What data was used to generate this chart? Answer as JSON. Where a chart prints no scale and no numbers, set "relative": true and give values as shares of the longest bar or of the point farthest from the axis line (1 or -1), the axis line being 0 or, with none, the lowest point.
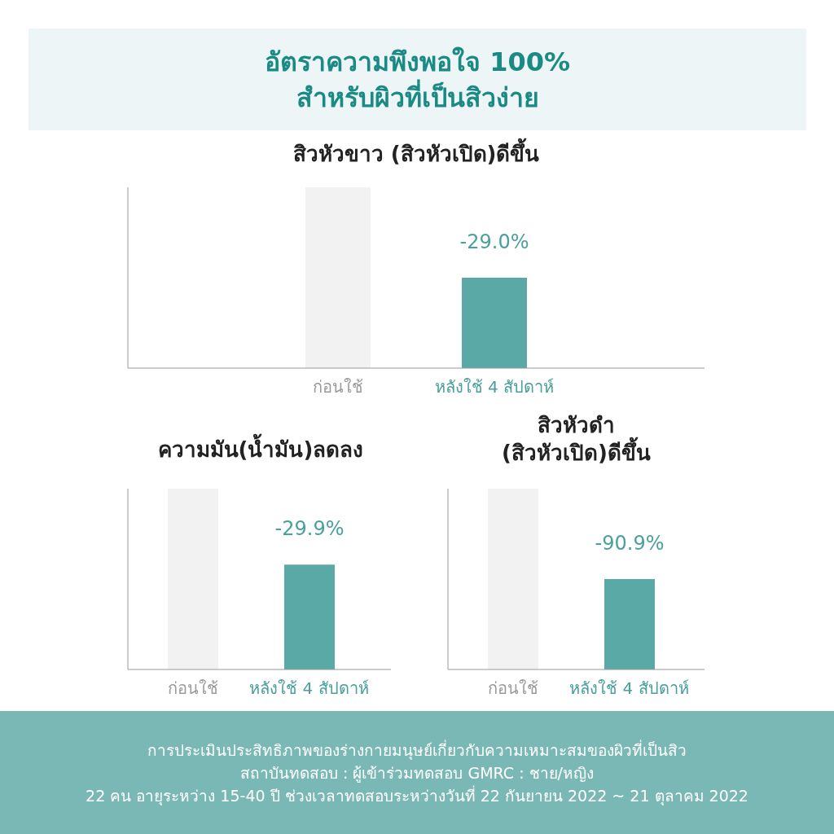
{
  "chart_data": [
    {
      "type": "other",
      "title": "อัตราความพึงพอใจ 100%\nสำหรับผิวที่เป็นสิวง่าย"
    },
    {
      "type": "bar",
      "title": "สิวหัวขาว (สิวหัวเปิด)ดีขึ้น",
      "categories": [
        "ก่อนใช้",
        "หลังใช้ 4 สัปดาห์"
      ],
      "values": [
        1,
        0.5
      ],
      "colors": [
        "#f2f2f2",
        "#5aa9a6"
      ],
      "relative": true,
      "annotations": [
        "-29.0%"
      ]
    },
    {
      "type": "bar",
      "title": "ความมัน(น้ำมัน)ลดลง",
      "categories": [
        "ก่อนใช้",
        "หลังใช้ 4 สัปดาห์"
      ],
      "values": [
        1,
        0.58
      ],
      "colors": [
        "#f2f2f2",
        "#5aa9a6"
      ],
      "relative": true,
      "annotations": [
        "-29.9%"
      ]
    },
    {
      "type": "bar",
      "title": "สิวหัวดำ\n(สิวหัวเปิด)ดีขึ้น",
      "categories": [
        "ก่อนใช้",
        "หลังใช้ 4 สัปดาห์"
      ],
      "values": [
        1,
        0.5
      ],
      "colors": [
        "#f2f2f2",
        "#5aa9a6"
      ],
      "relative": true,
      "annotations": [
        "-90.9%"
      ]
    },
    {
      "type": "other",
      "annotations": [
        "การประเมินประสิทธิภาพของร่างกายมนุษย์เกี่ยวกับความเหมาะสมของผิวที่เป็นสิว",
        "สถาบันทดสอบ : ผู้เข้าร่วมทดสอบ GMRC : ชาย/หญิง",
        "22 คน อายุระหว่าง 15-40 ปี ช่วงเวลาทดสอบระหว่างวันที่ 22 กันยายน 2022 ~ 21 ตุลาคม 2022"
      ]
    }
  ]
}
